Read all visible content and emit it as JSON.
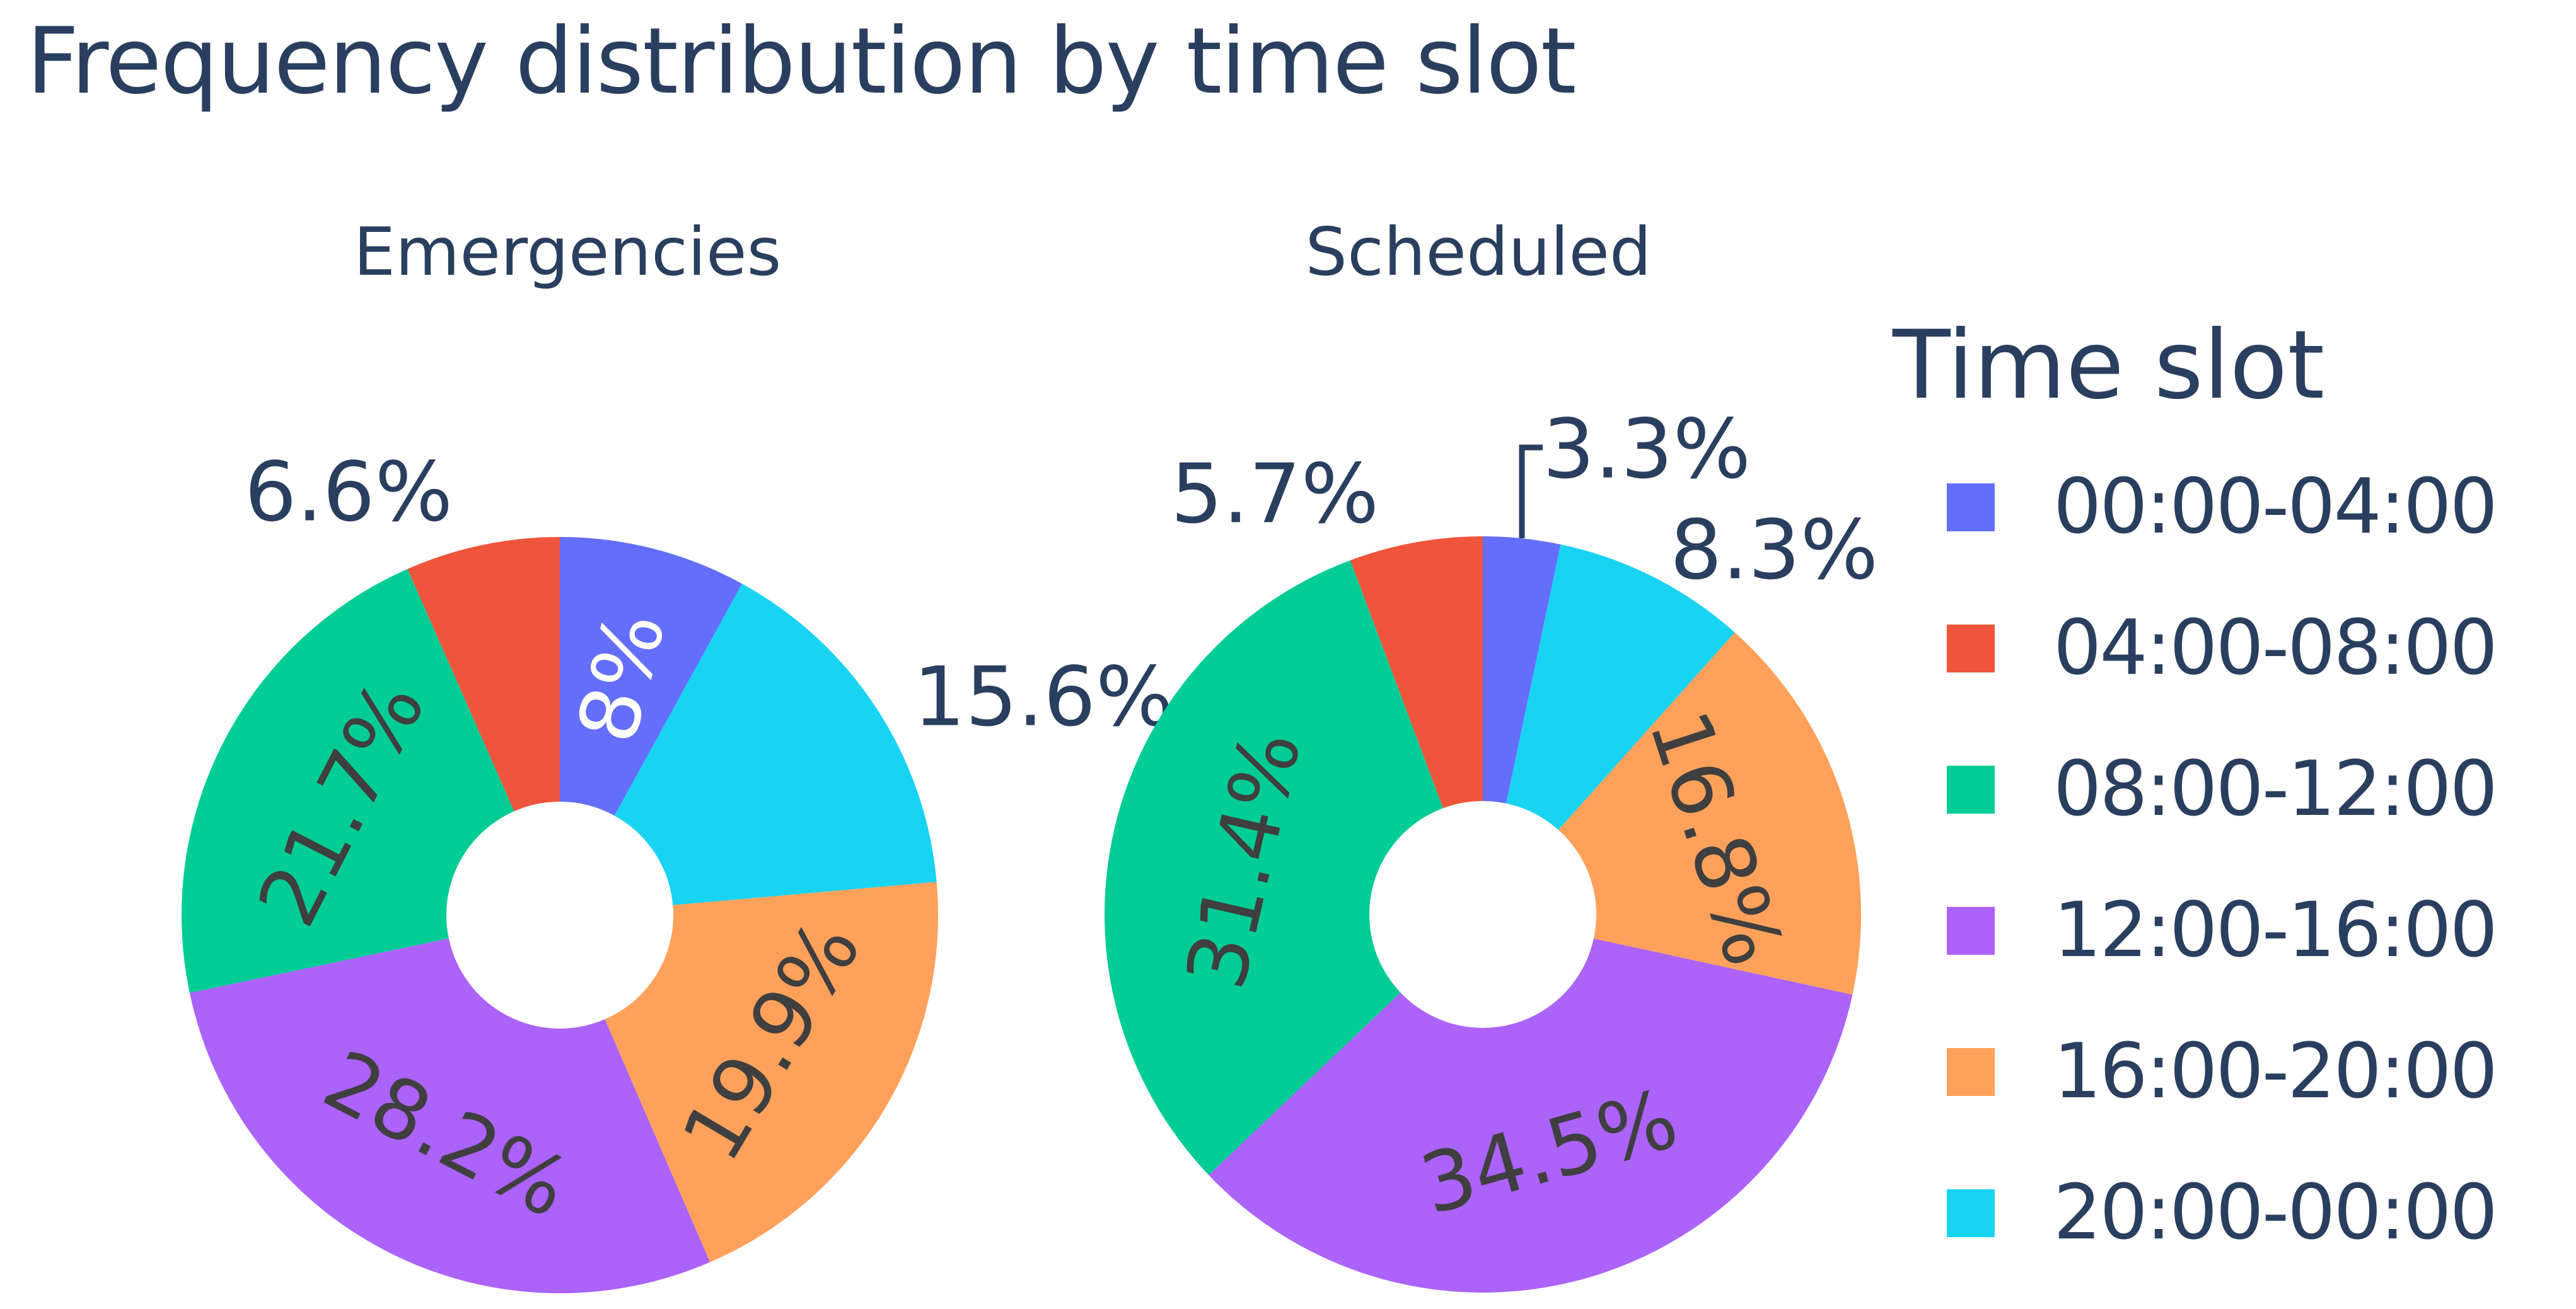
{
  "title": "Frequency distribution by time slot",
  "chart_data": [
    {
      "type": "pie",
      "title": "Emergencies",
      "hole": 0.3,
      "direction": "counterclockwise",
      "rotation": 0,
      "categories": [
        "00:00-04:00",
        "04:00-08:00",
        "08:00-12:00",
        "12:00-16:00",
        "16:00-20:00",
        "20:00-00:00"
      ],
      "values": [
        8.0,
        6.6,
        21.7,
        28.2,
        19.9,
        15.6
      ],
      "value_labels": [
        "8%",
        "6.6%",
        "21.7%",
        "28.2%",
        "19.9%",
        "15.6%"
      ]
    },
    {
      "type": "pie",
      "title": "Scheduled",
      "hole": 0.3,
      "direction": "counterclockwise",
      "rotation": 0,
      "categories": [
        "00:00-04:00",
        "04:00-08:00",
        "08:00-12:00",
        "12:00-16:00",
        "16:00-20:00",
        "20:00-00:00"
      ],
      "values": [
        3.3,
        5.7,
        31.4,
        34.5,
        16.8,
        8.3
      ],
      "value_labels": [
        "3.3%",
        "5.7%",
        "31.4%",
        "34.5%",
        "16.8%",
        "8.3%"
      ]
    }
  ],
  "legend": {
    "title": "Time slot",
    "entries": [
      {
        "label": "00:00-04:00",
        "color": "#636EFA"
      },
      {
        "label": "04:00-08:00",
        "color": "#EF553B"
      },
      {
        "label": "08:00-12:00",
        "color": "#00CC96"
      },
      {
        "label": "12:00-16:00",
        "color": "#AB63FA"
      },
      {
        "label": "16:00-20:00",
        "color": "#FFA15A"
      },
      {
        "label": "20:00-00:00",
        "color": "#19D3F3"
      }
    ]
  },
  "colors": {
    "background": "#FFFFFF",
    "title_text": "#2A3F5F",
    "outside_label_text": "#2A3F5F",
    "inside_label_dark": "#3F3F3F",
    "inside_label_light": "#FFFFFF",
    "leader_line": "#2A3F5F"
  }
}
